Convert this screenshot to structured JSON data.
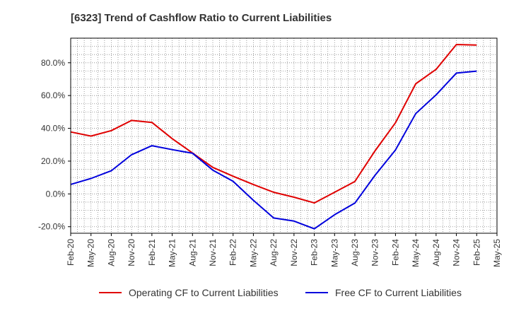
{
  "chart_data": {
    "type": "line",
    "title": "[6323]  Trend of Cashflow Ratio to Current Liabilities",
    "xlabel": "",
    "ylabel": "",
    "x": [
      "Feb-20",
      "May-20",
      "Aug-20",
      "Nov-20",
      "Feb-21",
      "May-21",
      "Aug-21",
      "Nov-21",
      "Feb-22",
      "May-22",
      "Aug-22",
      "Nov-22",
      "Feb-23",
      "May-23",
      "Aug-23",
      "Nov-23",
      "Feb-24",
      "May-24",
      "Aug-24",
      "Nov-24",
      "Feb-25"
    ],
    "x_tick_labels": [
      "Feb-20",
      "May-20",
      "Aug-20",
      "Nov-20",
      "Feb-21",
      "May-21",
      "Aug-21",
      "Nov-21",
      "Feb-22",
      "May-22",
      "Aug-22",
      "Nov-22",
      "Feb-23",
      "May-23",
      "Aug-23",
      "Nov-23",
      "Feb-24",
      "May-24",
      "Aug-24",
      "Nov-24",
      "Feb-25",
      "May-25"
    ],
    "y_tick_labels": [
      "-20.0%",
      "0.0%",
      "20.0%",
      "40.0%",
      "60.0%",
      "80.0%"
    ],
    "y_ticks": [
      -20,
      0,
      20,
      40,
      60,
      80
    ],
    "ylim": [
      -24,
      95
    ],
    "grid": true,
    "legend_position": "bottom",
    "series": [
      {
        "name": "Operating CF to Current Liabilities",
        "color": "#e00000",
        "values": [
          37.8,
          35.3,
          38.6,
          44.8,
          43.6,
          33.7,
          25.0,
          16.2,
          10.8,
          5.7,
          1.0,
          -2.0,
          -5.5,
          1.0,
          7.6,
          26.4,
          43.4,
          67.2,
          76.0,
          91.1,
          90.8
        ]
      },
      {
        "name": "Free CF to Current Liabilities",
        "color": "#0000dd",
        "values": [
          5.8,
          9.4,
          14.1,
          23.9,
          29.4,
          27.0,
          24.8,
          14.5,
          7.7,
          -3.9,
          -14.7,
          -16.6,
          -21.3,
          -12.7,
          -5.6,
          11.5,
          26.8,
          49.0,
          60.4,
          73.7,
          74.9
        ]
      }
    ]
  }
}
